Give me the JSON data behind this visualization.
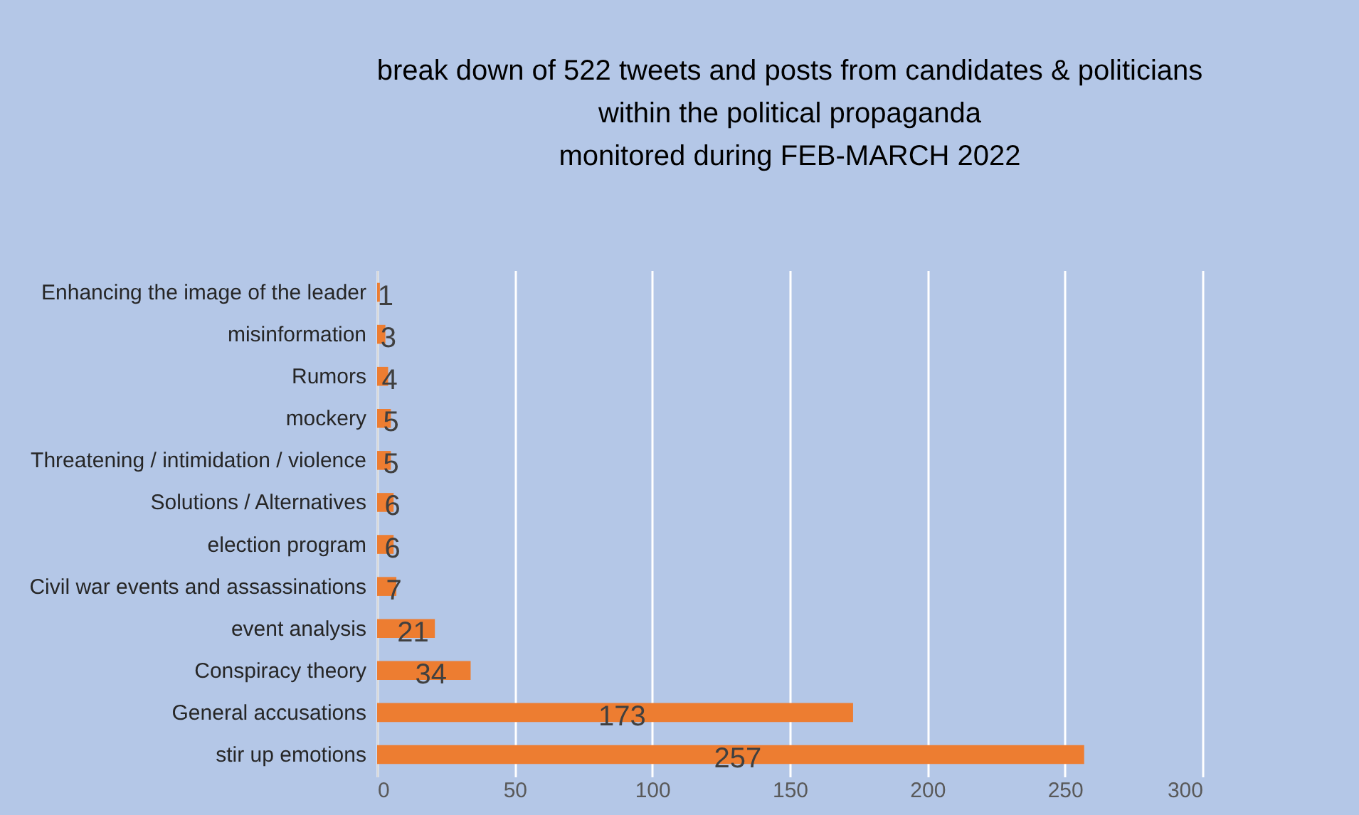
{
  "chart_data": {
    "type": "bar",
    "orientation": "horizontal",
    "title": [
      "break down of 522 tweets and posts from candidates & politicians",
      "within the political propaganda",
      "monitored during FEB-MARCH 2022"
    ],
    "categories": [
      "Enhancing the image of the leader",
      "misinformation",
      "Rumors",
      "mockery",
      "Threatening / intimidation / violence",
      "Solutions / Alternatives",
      "election program",
      "Civil war events and assassinations",
      "event analysis",
      "Conspiracy theory",
      "General accusations",
      "stir up emotions"
    ],
    "values": [
      1,
      3,
      4,
      5,
      5,
      6,
      6,
      7,
      21,
      34,
      173,
      257
    ],
    "color": "#ed7d31",
    "xlim": [
      0,
      300
    ],
    "xticks": [
      0,
      50,
      100,
      150,
      200,
      250,
      300
    ],
    "grid": "x",
    "data_labels": true
  }
}
